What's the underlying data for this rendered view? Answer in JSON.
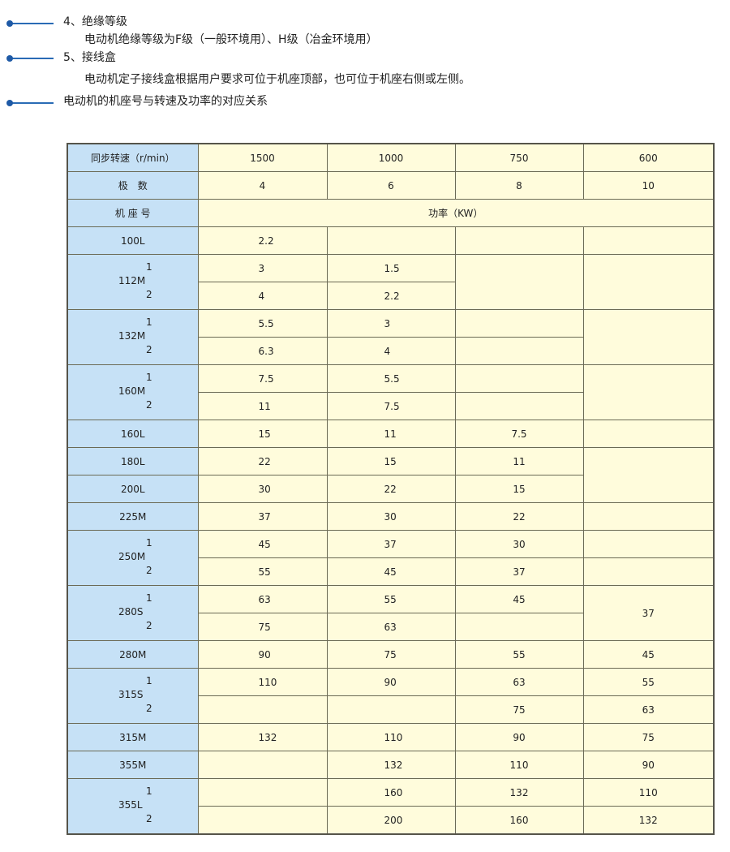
{
  "sections": [
    {
      "heading": "4、绝缘等级",
      "body": "电动机绝缘等级为F级（一般环境用）、H级（冶金环境用）"
    },
    {
      "heading": "5、接线盒",
      "body": "电动机定子接线盒根据用户要求可位于机座顶部，也可位于机座右侧或左侧。"
    },
    {
      "heading": "电动机的机座号与转速及功率的对应关系",
      "body": ""
    }
  ],
  "colors": {
    "accent": "#1f5aa6",
    "label_bg": "#c6e1f6",
    "cell_bg": "#fffcdc"
  },
  "table": {
    "speed_label": "同步转速（r/min）",
    "speeds": [
      "1500",
      "1000",
      "750",
      "600"
    ],
    "poles_label": "极　数",
    "poles": [
      "4",
      "6",
      "8",
      "10"
    ],
    "frame_label": "机 座 号",
    "power_label": "功率（KW）",
    "groups": [
      {
        "frame": "100L",
        "subs": [],
        "rows": [
          [
            "2.2",
            "",
            "",
            ""
          ]
        ]
      },
      {
        "frame": "112M",
        "subs": [
          "1",
          "2"
        ],
        "rows": [
          [
            "3",
            "1.5",
            "",
            ""
          ],
          [
            "4",
            "2.2",
            null,
            null
          ]
        ]
      },
      {
        "frame": "132M",
        "subs": [
          "1",
          "2"
        ],
        "rows": [
          [
            "5.5",
            "3",
            "",
            ""
          ],
          [
            "6.3",
            "4",
            "",
            null
          ]
        ]
      },
      {
        "frame": "160M",
        "subs": [
          "1",
          "2"
        ],
        "rows": [
          [
            "7.5",
            "5.5",
            "",
            ""
          ],
          [
            "11",
            "7.5",
            "",
            null
          ]
        ]
      },
      {
        "frame": "160L",
        "subs": [],
        "rows": [
          [
            "15",
            "11",
            "7.5",
            ""
          ]
        ]
      },
      {
        "frame": "180L",
        "subs": [],
        "rows": [
          [
            "22",
            "15",
            "11",
            ""
          ]
        ]
      },
      {
        "frame": "200L",
        "subs": [],
        "rows": [
          [
            "30",
            "22",
            "15",
            null
          ]
        ]
      },
      {
        "frame": "225M",
        "subs": [],
        "rows": [
          [
            "37",
            "30",
            "22",
            ""
          ]
        ]
      },
      {
        "frame": "250M",
        "subs": [
          "1",
          "2"
        ],
        "rows": [
          [
            "45",
            "37",
            "30",
            ""
          ],
          [
            "55",
            "45",
            "37",
            ""
          ]
        ]
      },
      {
        "frame": "280S",
        "subs": [
          "1",
          "2"
        ],
        "rows": [
          [
            "63",
            "55",
            "45",
            "37"
          ],
          [
            "75",
            "63",
            "",
            null
          ]
        ]
      },
      {
        "frame": "280M",
        "subs": [],
        "rows": [
          [
            "90",
            "75",
            "55",
            "45"
          ]
        ]
      },
      {
        "frame": "315S",
        "subs": [
          "1",
          "2"
        ],
        "rows": [
          [
            "110",
            "90",
            "63",
            "55"
          ],
          [
            "",
            "",
            "75",
            "63"
          ]
        ]
      },
      {
        "frame": "315M",
        "subs": [],
        "rows": [
          [
            "132",
            "110",
            "90",
            "75"
          ]
        ]
      },
      {
        "frame": "355M",
        "subs": [],
        "rows": [
          [
            "",
            "132",
            "110",
            "90"
          ]
        ]
      },
      {
        "frame": "355L",
        "subs": [
          "1",
          "2"
        ],
        "rows": [
          [
            "",
            "160",
            "132",
            "110"
          ],
          [
            "",
            "200",
            "160",
            "132"
          ]
        ]
      }
    ]
  }
}
